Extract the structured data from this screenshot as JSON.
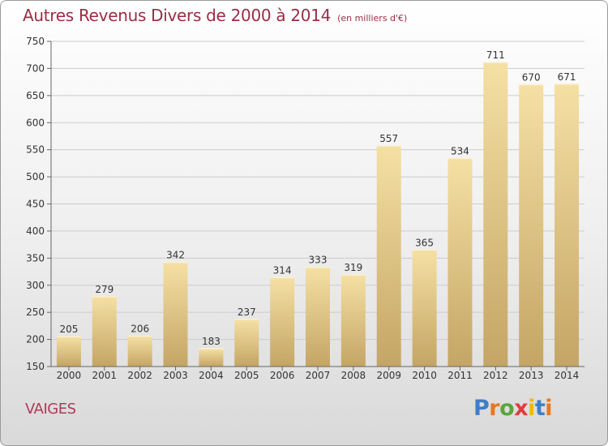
{
  "title": "Autres Revenus Divers de 2000 à 2014",
  "subtitle": "(en milliers d'€)",
  "location": "VAIGES",
  "brand": {
    "text": "Proxiti",
    "colors": [
      "#3d7fc4",
      "#e87722",
      "#5aa63c",
      "#e23b3b",
      "#f2b705",
      "#3d7fc4",
      "#e87722"
    ]
  },
  "colors": {
    "bar_light": "#f5e0a4",
    "bar_dark": "#c4a565",
    "title": "#9a2d45",
    "grid": "#cccccc"
  },
  "chart_data": {
    "type": "bar",
    "categories": [
      "2000",
      "2001",
      "2002",
      "2003",
      "2004",
      "2005",
      "2006",
      "2007",
      "2008",
      "2009",
      "2010",
      "2011",
      "2012",
      "2013",
      "2014"
    ],
    "values": [
      205,
      279,
      206,
      342,
      183,
      237,
      314,
      333,
      319,
      557,
      365,
      534,
      711,
      670,
      671
    ],
    "ylim": [
      150,
      750
    ],
    "yticks": [
      150,
      200,
      250,
      300,
      350,
      400,
      450,
      500,
      550,
      600,
      650,
      700,
      750
    ],
    "grid": true,
    "data_labels": true
  }
}
